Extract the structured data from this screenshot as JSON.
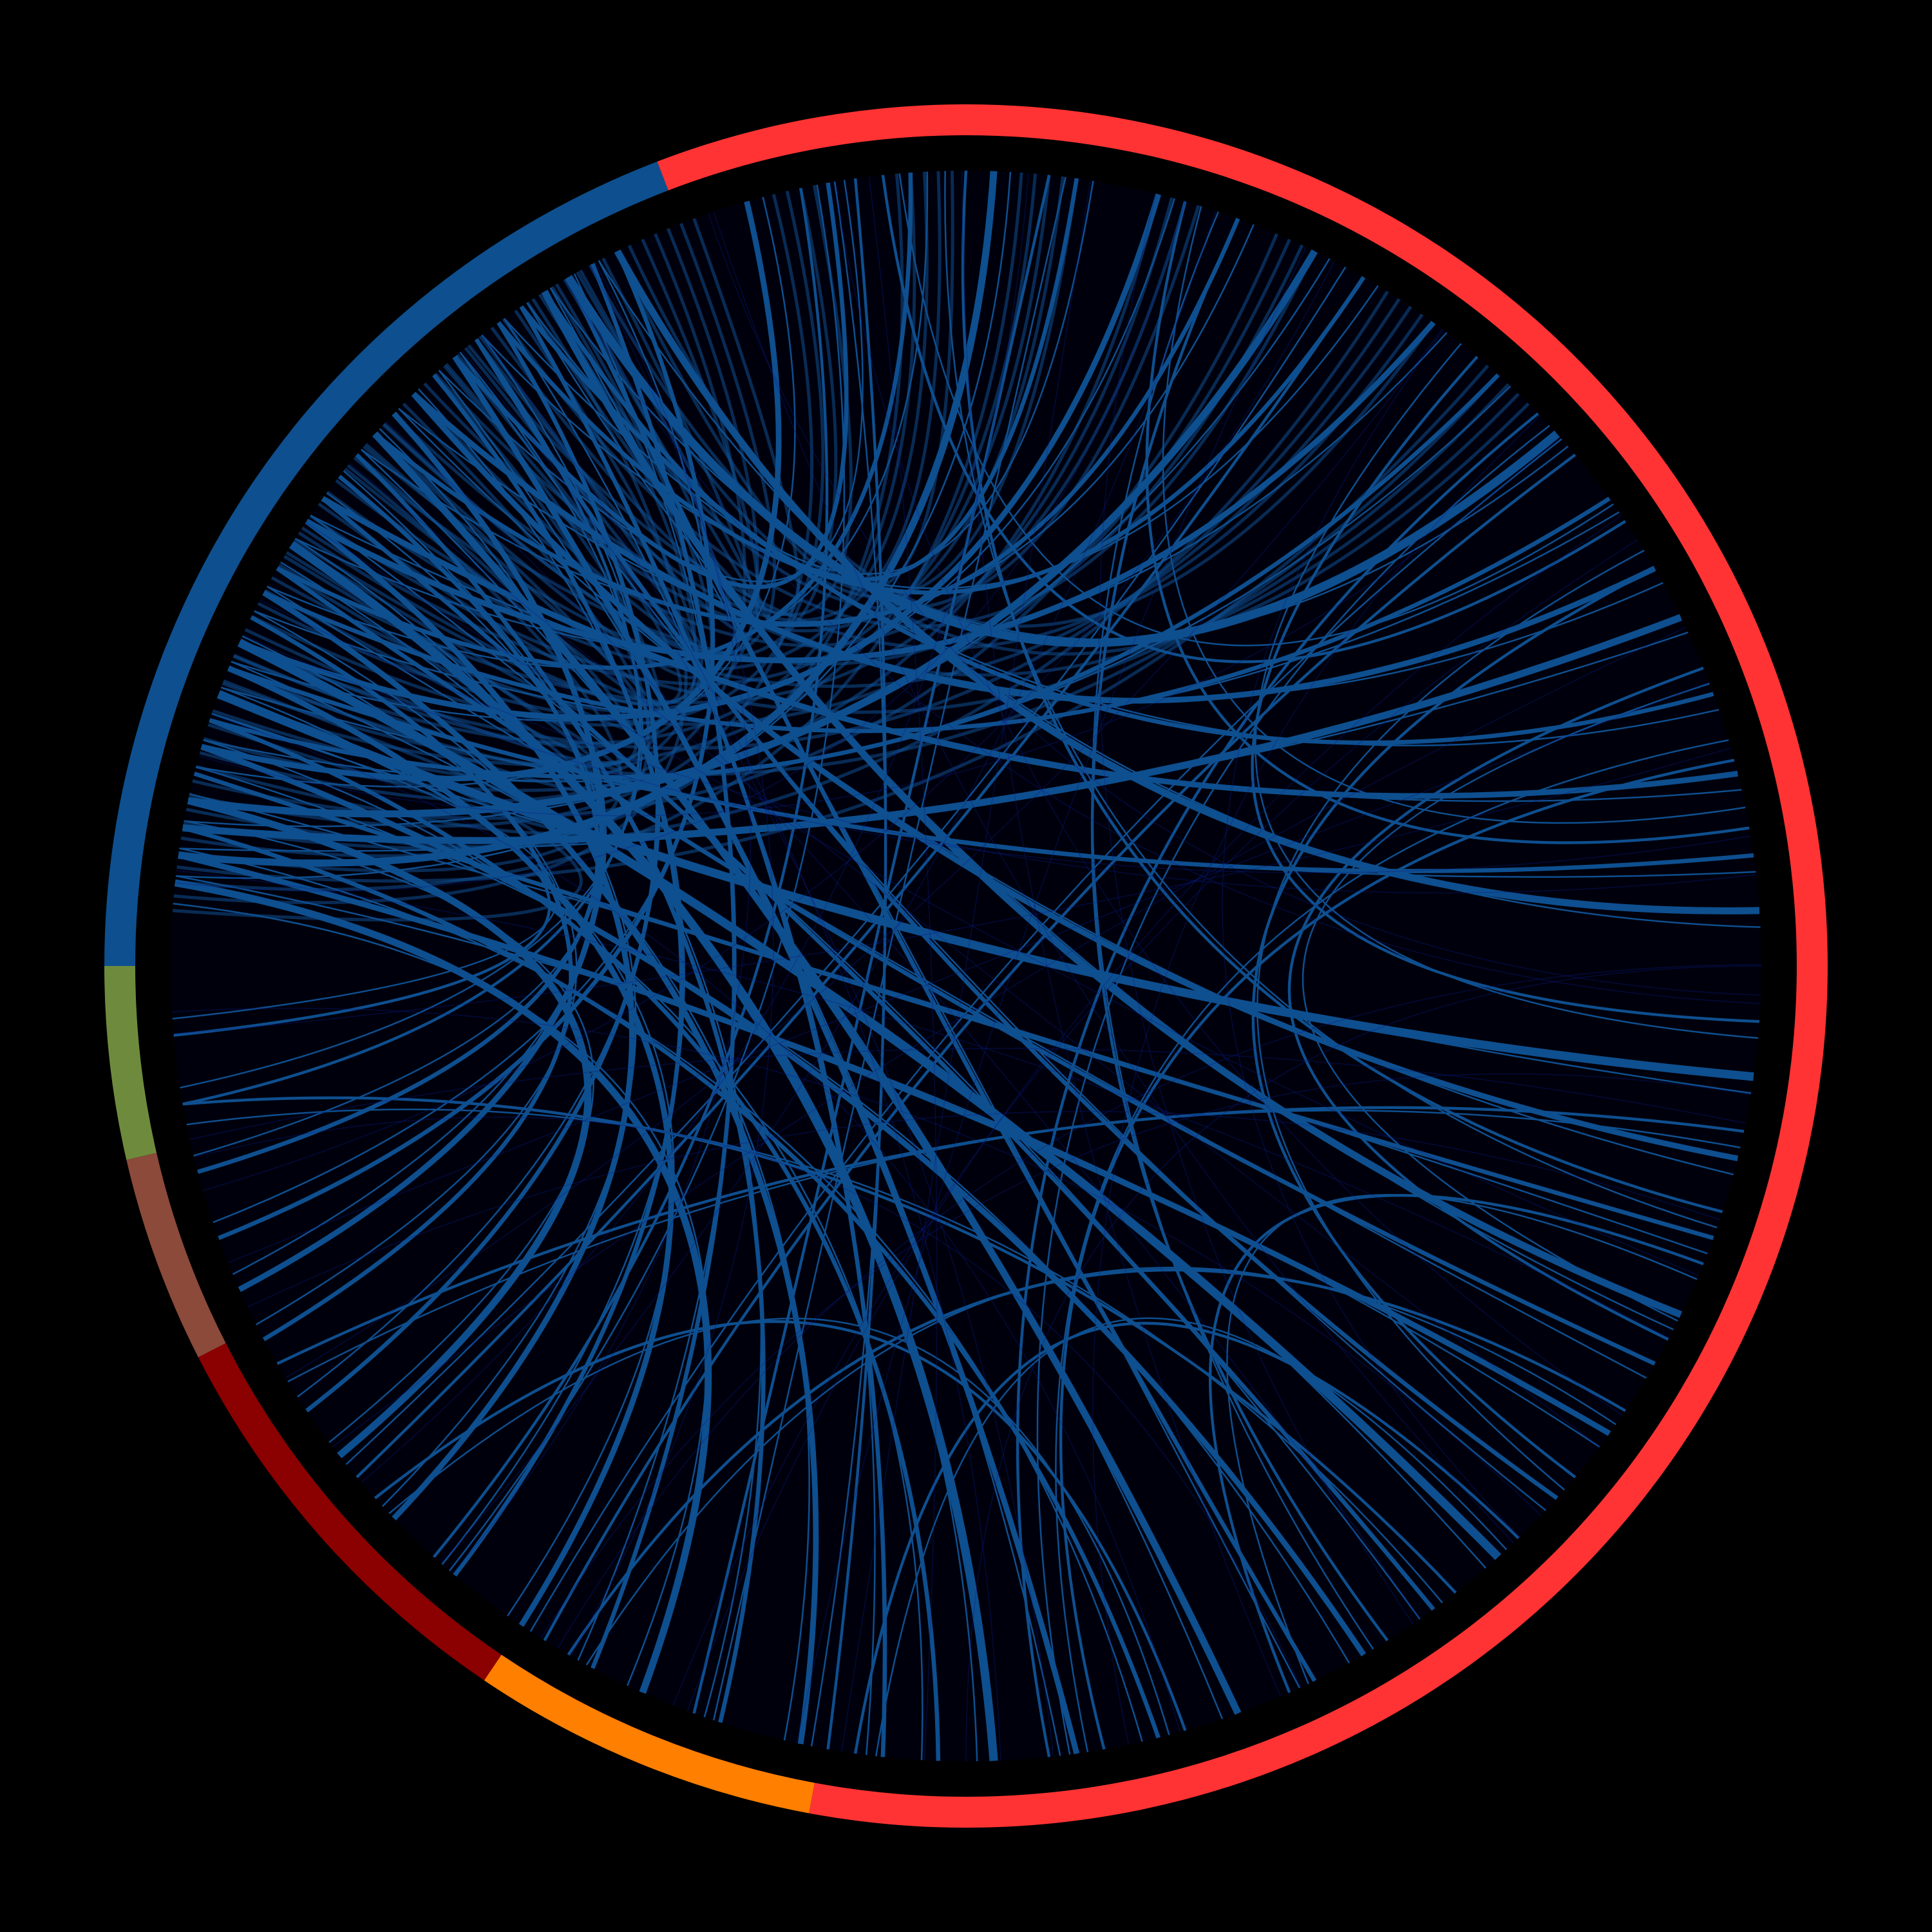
{
  "colors": {
    "background": "#000000",
    "disc_fill": "#00000c",
    "inner_ring": "#000000",
    "chord": "#0e4f8f",
    "chord_faint": "#0a1e8c"
  },
  "groups": [
    {
      "id": "group-red",
      "color": "#ff3333",
      "start_deg": 0,
      "end_deg": 100.5
    },
    {
      "id": "group-orange",
      "color": "#ff7f00",
      "start_deg": 100.5,
      "end_deg": 124
    },
    {
      "id": "group-maroon",
      "color": "#8b0000",
      "start_deg": 124,
      "end_deg": 153
    },
    {
      "id": "group-brown",
      "color": "#8b4a3a",
      "start_deg": 153,
      "end_deg": 167
    },
    {
      "id": "group-olive",
      "color": "#6e8b3d",
      "start_deg": 167,
      "end_deg": 180
    },
    {
      "id": "group-blue",
      "color": "#0e4f8f",
      "start_deg": 180,
      "end_deg": 249
    },
    {
      "id": "group-red-tail",
      "color": "#ff3333",
      "start_deg": 249,
      "end_deg": 360
    }
  ],
  "chord_data": {
    "type": "chord",
    "hub_span_deg": [
      184,
      246
    ],
    "links": [
      [
        8,
        200,
        6
      ],
      [
        14,
        226,
        4
      ],
      [
        20,
        194,
        3
      ],
      [
        26,
        238,
        5
      ],
      [
        30,
        210,
        3
      ],
      [
        36,
        188,
        4
      ],
      [
        42,
        232,
        3
      ],
      [
        48,
        204,
        6
      ],
      [
        54,
        216,
        3
      ],
      [
        60,
        196,
        4
      ],
      [
        64,
        240,
        3
      ],
      [
        70,
        222,
        5
      ],
      [
        76,
        190,
        3
      ],
      [
        82,
        230,
        4
      ],
      [
        88,
        212,
        6
      ],
      [
        92,
        198,
        3
      ],
      [
        96,
        236,
        3
      ],
      [
        102,
        208,
        4
      ],
      [
        108,
        220,
        3
      ],
      [
        114,
        186,
        5
      ],
      [
        118,
        242,
        3
      ],
      [
        124,
        202,
        4
      ],
      [
        130,
        228,
        3
      ],
      [
        136,
        214,
        4
      ],
      [
        142,
        192,
        5
      ],
      [
        146,
        234,
        3
      ],
      [
        152,
        206,
        3
      ],
      [
        156,
        224,
        4
      ],
      [
        160,
        244,
        3
      ],
      [
        165,
        218,
        3
      ],
      [
        170,
        232,
        2
      ],
      [
        175,
        200,
        2
      ],
      [
        254,
        196,
        4
      ],
      [
        260,
        230,
        3
      ],
      [
        266,
        210,
        3
      ],
      [
        272,
        188,
        5
      ],
      [
        278,
        238,
        3
      ],
      [
        284,
        204,
        4
      ],
      [
        290,
        222,
        3
      ],
      [
        296,
        192,
        5
      ],
      [
        300,
        234,
        3
      ],
      [
        306,
        214,
        4
      ],
      [
        312,
        198,
        3
      ],
      [
        318,
        240,
        6
      ],
      [
        324,
        208,
        3
      ],
      [
        330,
        226,
        4
      ],
      [
        334,
        190,
        5
      ],
      [
        340,
        236,
        3
      ],
      [
        346,
        216,
        4
      ],
      [
        352,
        202,
        3
      ],
      [
        356,
        244,
        5
      ],
      [
        4,
        310,
        2
      ],
      [
        18,
        270,
        2
      ],
      [
        40,
        330,
        2
      ],
      [
        58,
        290,
        2
      ],
      [
        80,
        345,
        2
      ],
      [
        100,
        262,
        2
      ],
      [
        122,
        320,
        2
      ],
      [
        140,
        300,
        2
      ],
      [
        12,
        150,
        2
      ],
      [
        34,
        120,
        2
      ],
      [
        52,
        170,
        2
      ],
      [
        74,
        138,
        2
      ],
      [
        286,
        350,
        2
      ],
      [
        264,
        326,
        2
      ],
      [
        46,
        98,
        2
      ],
      [
        22,
        66,
        2
      ],
      [
        338,
        28,
        2
      ],
      [
        316,
        84,
        2
      ],
      [
        276,
        110,
        2
      ],
      [
        258,
        132,
        2
      ]
    ]
  }
}
